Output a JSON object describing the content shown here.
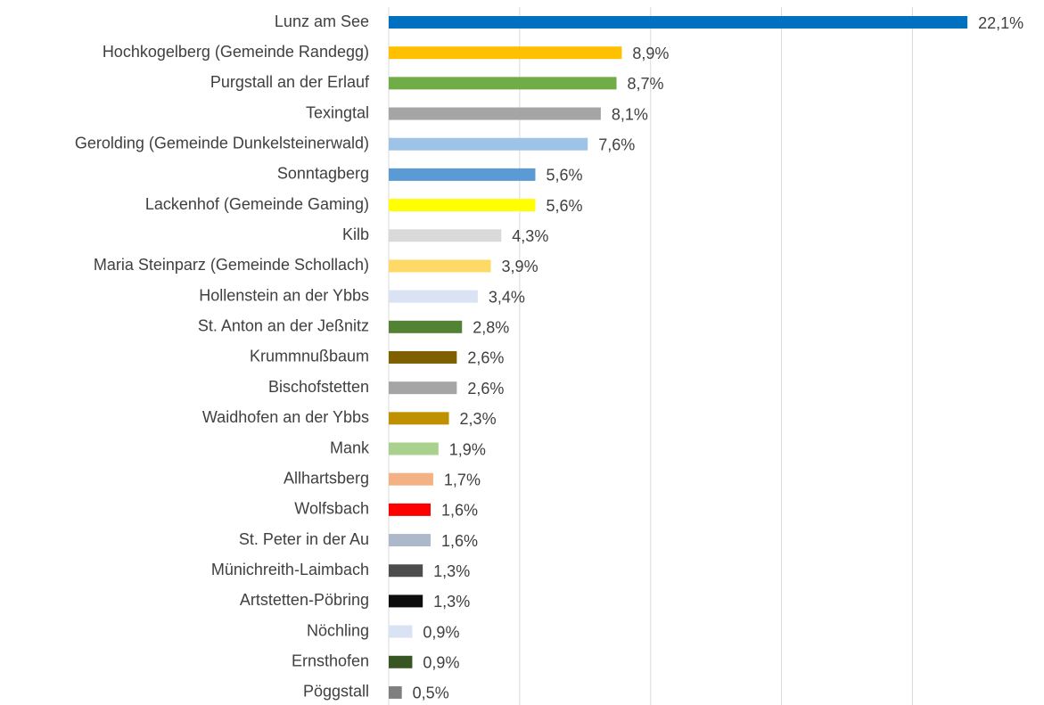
{
  "chart_data": {
    "type": "bar",
    "orientation": "horizontal",
    "categories": [
      "Lunz am See",
      "Hochkogelberg (Gemeinde Randegg)",
      "Purgstall an der Erlauf",
      "Texingtal",
      "Gerolding (Gemeinde Dunkelsteinerwald)",
      "Sonntagberg",
      "Lackenhof (Gemeinde Gaming)",
      "Kilb",
      "Maria Steinparz (Gemeinde Schollach)",
      "Hollenstein an der Ybbs",
      "St. Anton an der Jeßnitz",
      "Krummnußbaum",
      "Bischofstetten",
      "Waidhofen an der Ybbs",
      "Mank",
      "Allhartsberg",
      "Wolfsbach",
      "St. Peter in der Au",
      "Münichreith-Laimbach",
      "Artstetten-Pöbring",
      "Nöchling",
      "Ernsthofen",
      "Pöggstall"
    ],
    "values": [
      22.1,
      8.9,
      8.7,
      8.1,
      7.6,
      5.6,
      5.6,
      4.3,
      3.9,
      3.4,
      2.8,
      2.6,
      2.6,
      2.3,
      1.9,
      1.7,
      1.6,
      1.6,
      1.3,
      1.3,
      0.9,
      0.9,
      0.5
    ],
    "value_labels": [
      "22,1%",
      "8,9%",
      "8,7%",
      "8,1%",
      "7,6%",
      "5,6%",
      "5,6%",
      "4,3%",
      "3,9%",
      "3,4%",
      "2,8%",
      "2,6%",
      "2,6%",
      "2,3%",
      "1,9%",
      "1,7%",
      "1,6%",
      "1,6%",
      "1,3%",
      "1,3%",
      "0,9%",
      "0,9%",
      "0,5%"
    ],
    "colors": [
      "#0070c0",
      "#ffc000",
      "#70ad47",
      "#a5a5a5",
      "#9dc3e6",
      "#5b9bd5",
      "#ffff00",
      "#d9d9d9",
      "#ffd966",
      "#dae3f3",
      "#548235",
      "#7f6000",
      "#a5a5a5",
      "#bf9000",
      "#a9d18e",
      "#f4b183",
      "#ff0000",
      "#adb9ca",
      "#4d4d4d",
      "#0d0d0d",
      "#dae3f3",
      "#375623",
      "#7f7f7f"
    ],
    "xlim": [
      0,
      25
    ],
    "xticks": [
      0,
      5,
      10,
      15,
      20,
      25
    ],
    "grid": true
  }
}
